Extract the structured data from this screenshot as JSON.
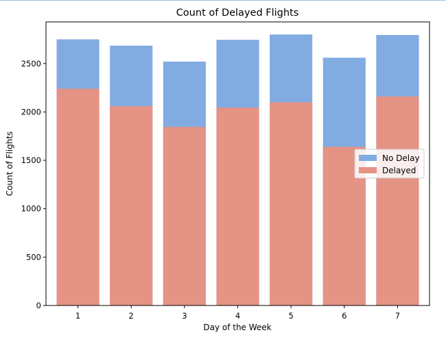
{
  "chart_data": {
    "type": "bar",
    "stacking": "overlay",
    "title": "Count of Delayed Flights",
    "xlabel": "Day of the Week",
    "ylabel": "Count of Flights",
    "categories": [
      "1",
      "2",
      "3",
      "4",
      "5",
      "6",
      "7"
    ],
    "series": [
      {
        "name": "No Delay",
        "color": "#81abe1",
        "values": [
          2750,
          2685,
          2520,
          2745,
          2800,
          2560,
          2795
        ]
      },
      {
        "name": "Delayed",
        "color": "#e59385",
        "values": [
          2240,
          2060,
          1845,
          2045,
          2100,
          1640,
          2160
        ]
      }
    ],
    "ylim": [
      0,
      2930
    ],
    "yticks": [
      0,
      500,
      1000,
      1500,
      2000,
      2500
    ],
    "grid": false,
    "legend": {
      "position": "center-right",
      "entries": [
        "No Delay",
        "Delayed"
      ]
    }
  }
}
